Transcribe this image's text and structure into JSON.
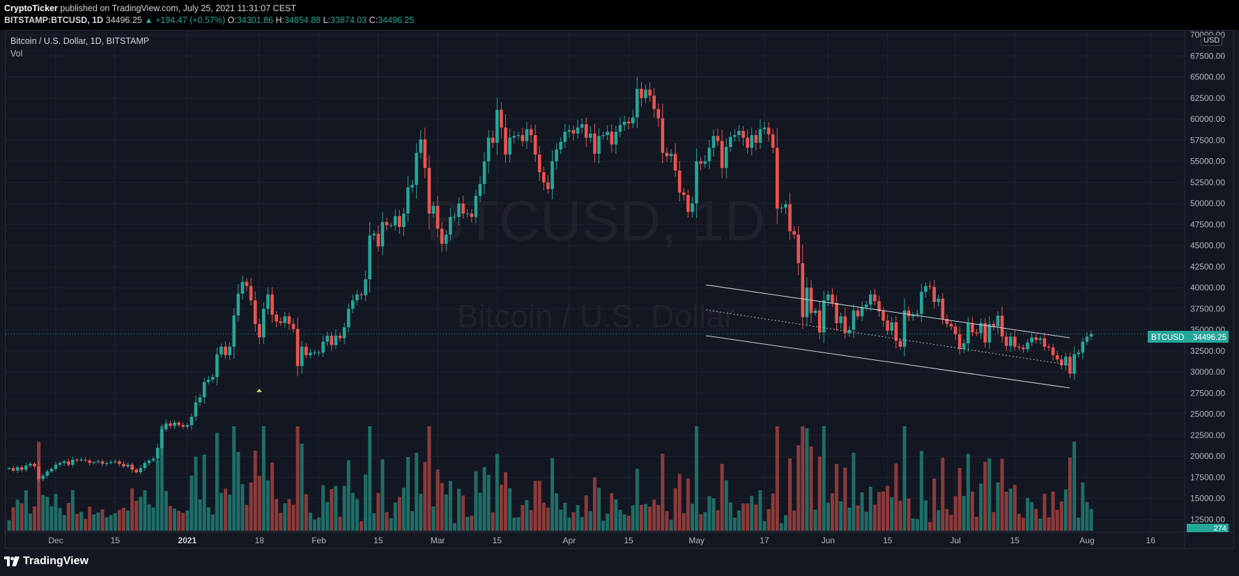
{
  "header": {
    "author": "CryptoTicker",
    "published_text": "published on TradingView.com, July 25, 2021 11:31:07 CEST",
    "symbol_line": "BITSTAMP:BTCUSD, 1D",
    "last": "34496.25",
    "change": "▲ +194.47 (+0.57%)",
    "o_label": "O:",
    "o_value": "34301.86",
    "h_label": "H:",
    "h_value": "34854.88",
    "l_label": "L:",
    "l_value": "33874.03",
    "c_label": "C:",
    "c_value": "34496.25"
  },
  "legend": {
    "title": "Bitcoin / U.S. Dollar, 1D, BITSTAMP",
    "volume_label": "Vol"
  },
  "watermark": {
    "symbol": "BTCUSD, 1D",
    "description": "Bitcoin / U.S. Dollar"
  },
  "currency_button": "USD",
  "price_tag": {
    "symbol": "BTCUSD",
    "value": "34496.25"
  },
  "volume_tag": "274",
  "footer": {
    "brand": "TradingView"
  },
  "colors": {
    "up": "#26a69a",
    "down": "#ef5350",
    "background": "#131722",
    "grid": "#1f2330"
  },
  "chart_data": {
    "type": "candlestick",
    "title": "Bitcoin / U.S. Dollar, 1D, BITSTAMP",
    "interval": "1D",
    "ylabel": "USD",
    "ylim": [
      11000,
      70500
    ],
    "y_ticks": [
      "12500.00",
      "15000.00",
      "17500.00",
      "20000.00",
      "22500.00",
      "25000.00",
      "27500.00",
      "30000.00",
      "32500.00",
      "35000.00",
      "37500.00",
      "40000.00",
      "42500.00",
      "45000.00",
      "47500.00",
      "50000.00",
      "52500.00",
      "55000.00",
      "57500.00",
      "60000.00",
      "62500.00",
      "65000.00",
      "67500.00",
      "70000.00"
    ],
    "x_ticks": [
      "Dec",
      "15",
      "2021",
      "18",
      "Feb",
      "15",
      "Mar",
      "15",
      "Apr",
      "15",
      "May",
      "17",
      "Jun",
      "15",
      "Jul",
      "15",
      "Aug",
      "16"
    ],
    "x_tick_dates": [
      "2020-12-01",
      "2020-12-15",
      "2021-01-01",
      "2021-01-18",
      "2021-02-01",
      "2021-02-15",
      "2021-03-01",
      "2021-03-15",
      "2021-04-01",
      "2021-04-15",
      "2021-05-01",
      "2021-05-17",
      "2021-06-01",
      "2021-06-15",
      "2021-07-01",
      "2021-07-15",
      "2021-08-01",
      "2021-08-16"
    ],
    "start_date": "2020-11-20",
    "candle_spacing_note": "daily candles",
    "closes": [
      18600,
      18300,
      18700,
      18400,
      18900,
      19100,
      18800,
      17300,
      17700,
      18200,
      18500,
      19000,
      19200,
      19400,
      19000,
      19600,
      19500,
      19600,
      19500,
      19200,
      19300,
      19400,
      19100,
      19200,
      19300,
      19400,
      19100,
      18800,
      19000,
      18400,
      18100,
      18600,
      19200,
      19500,
      19700,
      21000,
      23200,
      23900,
      23600,
      24000,
      23700,
      23500,
      23700,
      24700,
      26400,
      27000,
      28800,
      29100,
      29400,
      32100,
      33000,
      32000,
      33000,
      36700,
      39300,
      40700,
      40200,
      38500,
      35700,
      34100,
      37500,
      39200,
      36800,
      36000,
      35800,
      36600,
      35700,
      35100,
      30700,
      33000,
      32000,
      32300,
      32300,
      32300,
      33600,
      34300,
      33200,
      34300,
      34000,
      35300,
      37500,
      38500,
      39200,
      39100,
      41000,
      46200,
      46400,
      44900,
      47800,
      47400,
      47400,
      48500,
      47200,
      48800,
      51900,
      52200,
      56000,
      57600,
      54200,
      48800,
      49700,
      47000,
      45200,
      46300,
      48400,
      48400,
      50000,
      48800,
      48800,
      48400,
      50900,
      52300,
      55000,
      57800,
      57200,
      61100,
      59000,
      55800,
      57800,
      58000,
      58100,
      57400,
      58800,
      58100,
      55800,
      53700,
      52500,
      51700,
      55000,
      56400,
      57300,
      58500,
      58700,
      58300,
      59000,
      59400,
      57800,
      58300,
      55900,
      58000,
      58100,
      58500,
      57000,
      58500,
      59300,
      59700,
      59500,
      60200,
      63600,
      62500,
      63500,
      62800,
      61200,
      60100,
      56000,
      55600,
      55900,
      53900,
      51300,
      51000,
      49000,
      50000,
      55000,
      54700,
      55000,
      56600,
      58000,
      57400,
      54200,
      56700,
      57900,
      58100,
      58600,
      57800,
      56600,
      58100,
      57200,
      58800,
      59000,
      58200,
      56600,
      49400,
      49500,
      49900,
      46700,
      46300,
      42900,
      36500,
      40000,
      37000,
      37300,
      34700,
      38500,
      39200,
      38200,
      35800,
      36600,
      34600,
      35000,
      37300,
      36600,
      37700,
      38000,
      39200,
      38400,
      37200,
      36100,
      34900,
      35900,
      33700,
      33000,
      37300,
      36600,
      36800,
      36900,
      39500,
      40200,
      40100,
      38300,
      38700,
      36300,
      35700,
      35400,
      34500,
      32700,
      33400,
      35800,
      34700,
      34600,
      35800,
      33500,
      35700,
      35400,
      36700,
      34200,
      33100,
      34200,
      33000,
      32900,
      32700,
      33500,
      34100,
      33800,
      34000,
      33000,
      32900,
      32000,
      31500,
      30800,
      31800,
      29800,
      32100,
      32300,
      33600,
      34200,
      34500
    ]
  }
}
